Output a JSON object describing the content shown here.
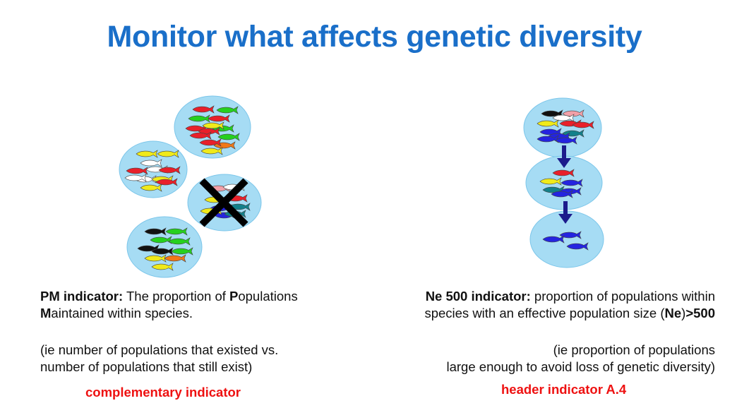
{
  "title": "Monitor what affects genetic diversity",
  "colors": {
    "title": "#1a6fc9",
    "pond": "#a6dcf4",
    "pond_edge": "#7cc6ea",
    "arrow": "#1c1b8c",
    "highlight": "#ee1111"
  },
  "icons": {
    "fish": "fish-icon",
    "cross": "x-cross-icon",
    "arrow": "down-arrow-icon"
  },
  "left": {
    "heading_bold": "PM indicator:",
    "line1_a": " The proportion of ",
    "line1_b": "P",
    "line1_c": "opulations",
    "line2_a": "M",
    "line2_b": "aintained within species.",
    "note1": "(ie number of populations that existed vs.",
    "note2": "number of populations that still exist)",
    "tag": "complementary indicator"
  },
  "right": {
    "heading_bold": "Ne 500 indicator:",
    "line1_rest": " proportion of populations within",
    "line2_a": "species with an effective population size (",
    "line2_b": "Ne",
    "line2_c": ")",
    "line2_d": ">500",
    "note1": "(ie proportion of populations",
    "note2": "large enough to avoid loss of genetic diversity)",
    "tag": "header indicator A.4"
  },
  "ponds": [
    {
      "name": "pond-top",
      "fish": [
        "red",
        "green",
        "green",
        "red",
        "red",
        "green",
        "red",
        "red",
        "green",
        "yellow",
        "orange",
        "red",
        "yellow"
      ]
    },
    {
      "name": "pond-left",
      "fish": [
        "yellow",
        "yellow",
        "white",
        "red",
        "white",
        "red",
        "white",
        "yellow",
        "white",
        "red",
        "yellow"
      ]
    },
    {
      "name": "pond-crossed",
      "fish": [
        "pink",
        "white",
        "yellow",
        "red",
        "blue",
        "teal",
        "blue",
        "yellow",
        "teal"
      ]
    },
    {
      "name": "pond-bottom",
      "fish": [
        "black",
        "green",
        "green",
        "green",
        "black",
        "black",
        "green",
        "yellow",
        "orange",
        "yellow"
      ]
    },
    {
      "name": "pond-right-1",
      "fish": [
        "black",
        "pink",
        "white",
        "yellow",
        "red",
        "red",
        "blue",
        "teal",
        "blue",
        "blue",
        "blue"
      ]
    },
    {
      "name": "pond-right-2",
      "fish": [
        "red",
        "yellow",
        "blue",
        "teal",
        "blue",
        "blue"
      ]
    },
    {
      "name": "pond-right-3",
      "fish": [
        "blue",
        "blue",
        "blue"
      ]
    }
  ],
  "fish_colors": {
    "red": "#e8202a",
    "green": "#26d01e",
    "yellow": "#f0ea1a",
    "orange": "#f07818",
    "white": "#ffffff",
    "black": "#111111",
    "pink": "#f2a0a8",
    "blue": "#2424e0",
    "teal": "#13808a"
  }
}
